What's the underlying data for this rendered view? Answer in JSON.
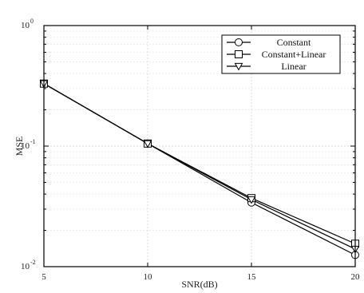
{
  "chart_data": {
    "type": "line",
    "xlabel": "SNR(dB)",
    "ylabel": "MSE",
    "x": [
      5,
      10,
      15,
      20
    ],
    "xlim": [
      5,
      20
    ],
    "ylim": [
      0.01,
      1
    ],
    "yscale": "log",
    "xticks": [
      5,
      10,
      15,
      20
    ],
    "xtick_labels": [
      "5",
      "10",
      "15",
      "20"
    ],
    "yticks": [
      {
        "value": 1,
        "base": "10",
        "exp": "0"
      },
      {
        "value": 0.1,
        "base": "10",
        "exp": "-1"
      },
      {
        "value": 0.01,
        "base": "10",
        "exp": "-2"
      }
    ],
    "grid": true,
    "legend_position": "top-right",
    "series": [
      {
        "name": "Constant",
        "marker": "circle",
        "values": [
          0.33,
          0.105,
          0.034,
          0.0125
        ]
      },
      {
        "name": "Constant+Linear",
        "marker": "square",
        "values": [
          0.33,
          0.105,
          0.037,
          0.0155
        ]
      },
      {
        "name": "Linear",
        "marker": "triangle-down",
        "values": [
          0.33,
          0.105,
          0.036,
          0.014
        ]
      }
    ]
  }
}
